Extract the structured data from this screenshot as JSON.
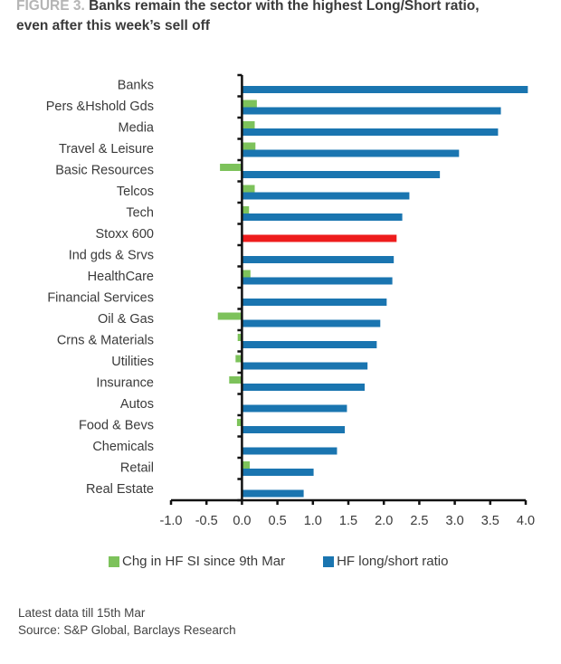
{
  "header": {
    "figure_label": "FIGURE 3.",
    "title_line1": " Banks remain the sector with the highest Long/Short ratio,",
    "title_line2": "even after this week’s sell off"
  },
  "colors": {
    "change": "#7dc25b",
    "ratio": "#1a75b0",
    "highlight": "#ee1c1c",
    "axis": "#111111"
  },
  "chart_data": {
    "type": "bar",
    "orientation": "horizontal",
    "title": "Banks remain the sector with the highest Long/Short ratio, even after this week’s sell off",
    "categories": [
      "Banks",
      "Pers &Hshold Gds",
      "Media",
      "Travel & Leisure",
      "Basic Resources",
      "Telcos",
      "Tech",
      "Stoxx 600",
      "Ind gds & Srvs",
      "HealthCare",
      "Financial Services",
      "Oil & Gas",
      "Crns & Materials",
      "Utilities",
      "Insurance",
      "Autos",
      "Food & Bevs",
      "Chemicals",
      "Retail",
      "Real Estate"
    ],
    "series": [
      {
        "name": "Chg in HF SI since 9th Mar",
        "color": "#7dc25b",
        "values": [
          0.0,
          0.21,
          0.18,
          0.19,
          -0.31,
          0.18,
          0.1,
          0.0,
          0.0,
          0.12,
          0.0,
          -0.34,
          -0.06,
          -0.09,
          -0.18,
          0.0,
          -0.07,
          -0.01,
          0.11,
          -0.01
        ]
      },
      {
        "name": "HF long/short ratio",
        "color": "#1a75b0",
        "highlight": {
          "category": "Stoxx 600",
          "color": "#ee1c1c"
        },
        "values": [
          4.03,
          3.65,
          3.61,
          3.06,
          2.79,
          2.36,
          2.26,
          2.18,
          2.14,
          2.12,
          2.04,
          1.95,
          1.9,
          1.77,
          1.73,
          1.48,
          1.45,
          1.34,
          1.01,
          0.87
        ]
      }
    ],
    "xlim": [
      -1.0,
      4.0
    ],
    "xticks": [
      "-1.0",
      "-0.5",
      "0.0",
      "0.5",
      "1.0",
      "1.5",
      "2.0",
      "2.5",
      "3.0",
      "3.5",
      "4.0"
    ],
    "xtick_values": [
      -1.0,
      -0.5,
      0.0,
      0.5,
      1.0,
      1.5,
      2.0,
      2.5,
      3.0,
      3.5,
      4.0
    ],
    "xlabel": "",
    "ylabel": "",
    "grid": false,
    "legend_position": "bottom"
  },
  "legend": {
    "items": [
      {
        "label": "Chg in HF SI since 9th Mar"
      },
      {
        "label": "HF long/short ratio"
      }
    ]
  },
  "footer": {
    "note": "Latest data till 15th Mar",
    "source": "Source: S&P Global, Barclays Research"
  }
}
